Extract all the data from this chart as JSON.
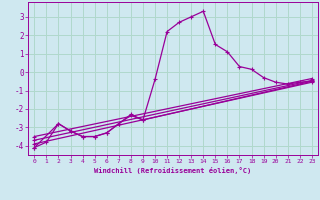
{
  "title": "",
  "xlabel": "Windchill (Refroidissement éolien,°C)",
  "ylabel": "",
  "background_color": "#cfe8f0",
  "grid_color": "#b0d8cc",
  "line_color": "#990099",
  "xlim": [
    -0.5,
    23.5
  ],
  "ylim": [
    -4.5,
    3.8
  ],
  "yticks": [
    -4,
    -3,
    -2,
    -1,
    0,
    1,
    2,
    3
  ],
  "xticks": [
    0,
    1,
    2,
    3,
    4,
    5,
    6,
    7,
    8,
    9,
    10,
    11,
    12,
    13,
    14,
    15,
    16,
    17,
    18,
    19,
    20,
    21,
    22,
    23
  ],
  "series0_x": [
    0,
    1,
    2,
    3,
    4,
    5,
    6,
    7,
    8,
    9,
    10,
    11,
    12,
    13,
    14,
    15,
    16,
    17,
    18,
    19,
    20,
    21,
    22,
    23
  ],
  "series0_y": [
    -4.1,
    -3.8,
    -2.8,
    -3.2,
    -3.5,
    -3.5,
    -3.3,
    -2.8,
    -2.3,
    -2.6,
    -0.4,
    2.2,
    2.7,
    3.0,
    3.3,
    1.5,
    1.1,
    0.3,
    0.15,
    -0.3,
    -0.55,
    -0.65,
    -0.55,
    -0.5
  ],
  "series1_x": [
    0,
    2,
    3,
    4,
    5,
    6,
    7,
    8,
    9,
    23
  ],
  "series1_y": [
    -4.1,
    -2.8,
    -3.2,
    -3.5,
    -3.5,
    -3.3,
    -2.8,
    -2.35,
    -2.6,
    -0.5
  ],
  "series2_x": [
    0,
    23
  ],
  "series2_y": [
    -3.9,
    -0.55
  ],
  "series3_x": [
    0,
    23
  ],
  "series3_y": [
    -3.7,
    -0.45
  ],
  "series4_x": [
    0,
    23
  ],
  "series4_y": [
    -3.5,
    -0.35
  ]
}
